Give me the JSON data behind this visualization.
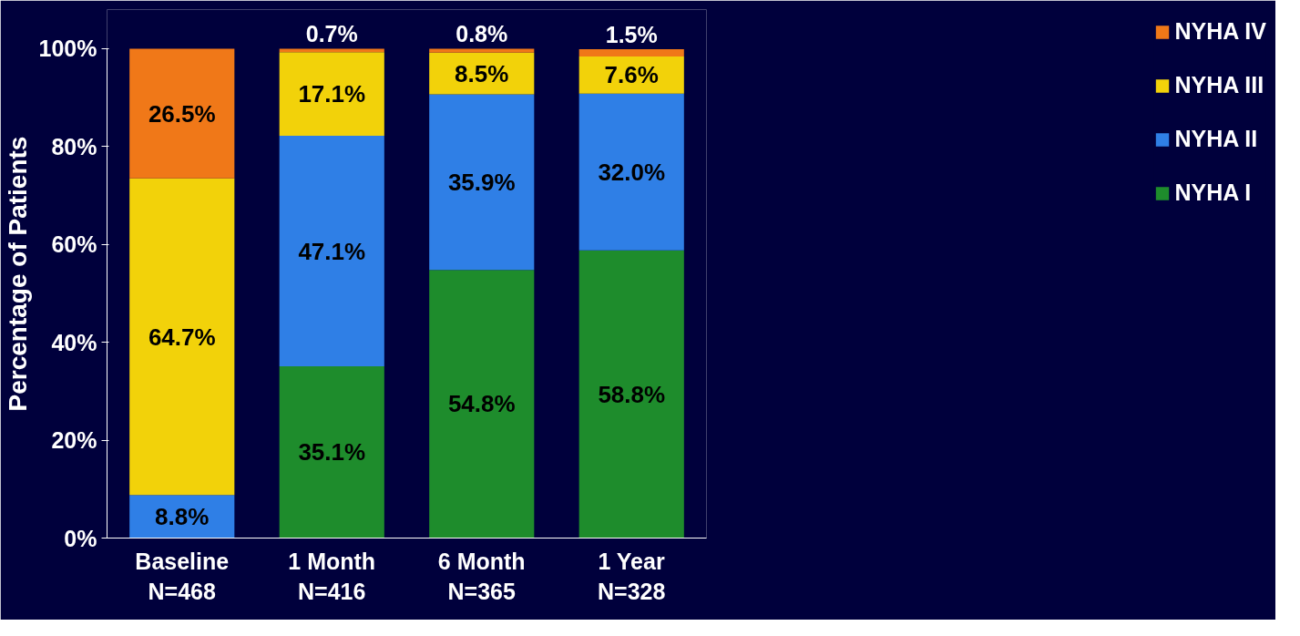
{
  "chart_data": {
    "type": "bar",
    "stacked": true,
    "ylabel": "Percentage of Patients",
    "categories": [
      "Baseline\nN=468",
      "1 Month\nN=416",
      "6 Month\nN=365",
      "1 Year\nN=328"
    ],
    "series": [
      {
        "name": "NYHA I",
        "color": "#1e8c2c",
        "values": [
          null,
          35.1,
          54.8,
          58.8
        ],
        "value_labels": [
          null,
          "35.1%",
          "54.8%",
          "58.8%"
        ]
      },
      {
        "name": "NYHA II",
        "color": "#2f7fe6",
        "values": [
          8.8,
          47.1,
          35.9,
          32.0
        ],
        "value_labels": [
          "8.8%",
          "47.1%",
          "35.9%",
          "32.0%"
        ]
      },
      {
        "name": "NYHA III",
        "color": "#f2d20a",
        "values": [
          64.7,
          17.1,
          8.5,
          7.6
        ],
        "value_labels": [
          "64.7%",
          "17.1%",
          "8.5%",
          "7.6%"
        ]
      },
      {
        "name": "NYHA IV",
        "color": "#f07818",
        "values": [
          26.5,
          0.7,
          0.8,
          1.5
        ],
        "value_labels": [
          "26.5%",
          "0.7%",
          "0.8%",
          "1.5%"
        ]
      }
    ],
    "ylim": [
      0,
      100
    ],
    "yticks": [
      {
        "value": 0,
        "label": "0%"
      },
      {
        "value": 20,
        "label": "20%"
      },
      {
        "value": 40,
        "label": "40%"
      },
      {
        "value": 60,
        "label": "60%"
      },
      {
        "value": 80,
        "label": "80%"
      },
      {
        "value": 100,
        "label": "100%"
      }
    ],
    "legend": "right",
    "grid": false
  }
}
